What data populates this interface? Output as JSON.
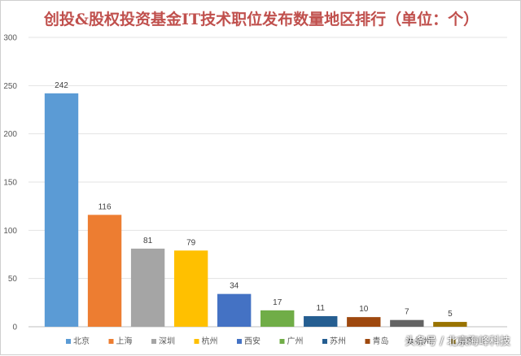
{
  "chart_data": {
    "type": "bar",
    "title": "创投&股权投资基金IT技术职位发布数量地区排行（单位：个）",
    "categories": [
      "北京",
      "上海",
      "深圳",
      "杭州",
      "西安",
      "广州",
      "苏州",
      "青岛",
      "福州",
      "南京"
    ],
    "values": [
      242,
      116,
      81,
      79,
      34,
      17,
      11,
      10,
      7,
      5
    ],
    "colors": [
      "#5b9bd5",
      "#ed7d31",
      "#a5a5a5",
      "#ffc000",
      "#4472c4",
      "#70ad47",
      "#255e91",
      "#9e480e",
      "#636363",
      "#997300"
    ],
    "ylim": [
      0,
      300
    ],
    "yticks": [
      0,
      50,
      100,
      150,
      200,
      250,
      300
    ],
    "grid": true,
    "legend": "bottom",
    "xlabel": "",
    "ylabel": ""
  },
  "watermark": "头条号 / 北京海峰科技"
}
